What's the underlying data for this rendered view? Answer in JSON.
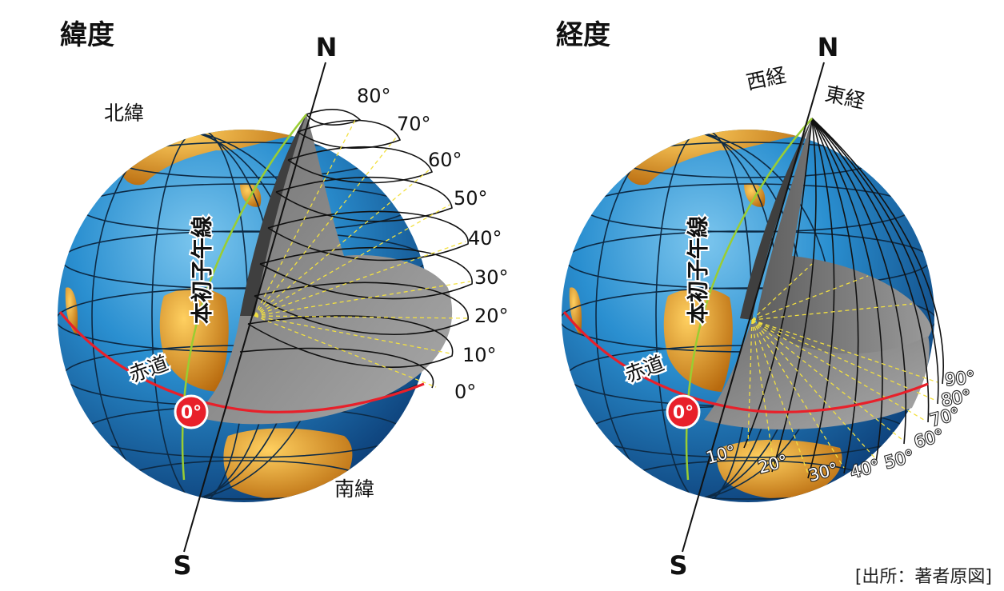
{
  "left": {
    "title": "緯度",
    "north_label": "N",
    "south_label": "S",
    "north_hemisphere": "北緯",
    "south_hemisphere": "南緯",
    "prime_meridian": "本初子午線",
    "equator": "赤道",
    "origin_label": "0°",
    "degree_labels": [
      "0°",
      "10°",
      "20°",
      "30°",
      "40°",
      "50°",
      "60°",
      "70°",
      "80°"
    ]
  },
  "right": {
    "title": "経度",
    "north_label": "N",
    "south_label": "S",
    "west_longitude": "西経",
    "east_longitude": "東経",
    "prime_meridian": "本初子午線",
    "equator": "赤道",
    "origin_label": "0°",
    "degree_labels": [
      "10°",
      "20°",
      "30°",
      "40°",
      "50°",
      "60°",
      "70°",
      "80°",
      "90°"
    ]
  },
  "source": "[出所：著者原図]",
  "colors": {
    "ocean": "#1f82c4",
    "land": "#f0a020",
    "grid": "#0d2a45",
    "section": "#8a8a8a",
    "equator": "#e8202a",
    "prime_meridian": "#9acd32",
    "angle_lines": "#f2e040"
  }
}
